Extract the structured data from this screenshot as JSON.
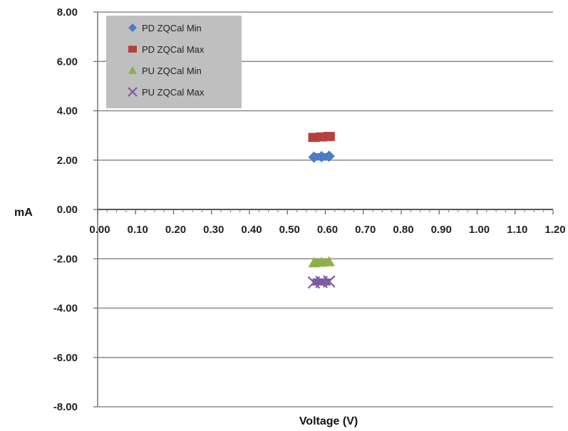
{
  "chart_data": {
    "type": "scatter",
    "title": "",
    "xlabel": "Voltage (V)",
    "ylabel": "mA",
    "xlim": [
      0,
      1.2
    ],
    "ylim": [
      -8,
      8
    ],
    "x_ticks": [
      "0.00",
      "0.10",
      "0.20",
      "0.30",
      "0.40",
      "0.50",
      "0.60",
      "0.70",
      "0.80",
      "0.90",
      "1.00",
      "1.10",
      "1.20"
    ],
    "y_ticks": [
      "8.00",
      "6.00",
      "4.00",
      "2.00",
      "0.00",
      "-2.00",
      "-4.00",
      "-6.00",
      "-8.00"
    ],
    "grid": "horizontal",
    "legend_position": "top-left",
    "series": [
      {
        "name": "PD ZQCal Min",
        "marker": "diamond",
        "color": "#4a7cc7",
        "points": [
          [
            0.57,
            2.12
          ],
          [
            0.59,
            2.14
          ],
          [
            0.61,
            2.16
          ]
        ]
      },
      {
        "name": "PD ZQCal Max",
        "marker": "square",
        "color": "#b5413c",
        "points": [
          [
            0.57,
            2.92
          ],
          [
            0.59,
            2.94
          ],
          [
            0.61,
            2.96
          ]
        ]
      },
      {
        "name": "PU ZQCal Min",
        "marker": "triangle",
        "color": "#8db147",
        "points": [
          [
            0.57,
            -2.16
          ],
          [
            0.59,
            -2.14
          ],
          [
            0.61,
            -2.12
          ]
        ]
      },
      {
        "name": "PU ZQCal Max",
        "marker": "x",
        "color": "#7d5aa6",
        "points": [
          [
            0.57,
            -2.96
          ],
          [
            0.59,
            -2.94
          ],
          [
            0.61,
            -2.92
          ]
        ]
      }
    ]
  }
}
